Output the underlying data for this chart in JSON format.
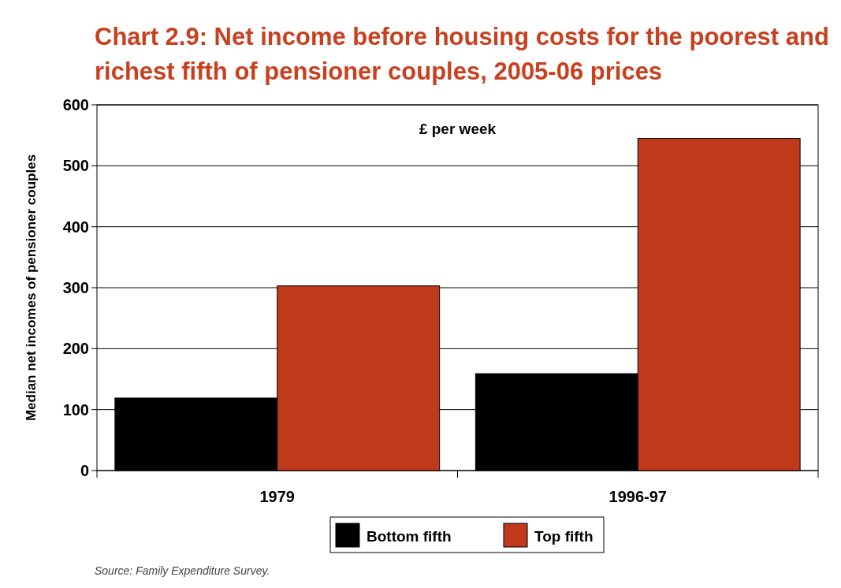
{
  "chart_data": {
    "type": "bar",
    "title": "Chart 2.9: Net income before housing costs for the poorest and richest fifth of pensioner couples, 2005-06 prices",
    "ylabel": "Median net incomes of pensioner couples",
    "categories": [
      "1979",
      "1996-97"
    ],
    "series": [
      {
        "name": "Bottom fifth",
        "color": "#000000",
        "values": [
          119,
          159
        ]
      },
      {
        "name": "Top fifth",
        "color": "#c0391b",
        "values": [
          303,
          545
        ]
      }
    ],
    "ylim": [
      0,
      600
    ],
    "yticks": [
      0,
      100,
      200,
      300,
      400,
      500,
      600
    ],
    "grid": "y",
    "legend": "bottom",
    "annotations": [
      "£ per week",
      "Source: Family Expenditure Survey."
    ]
  }
}
